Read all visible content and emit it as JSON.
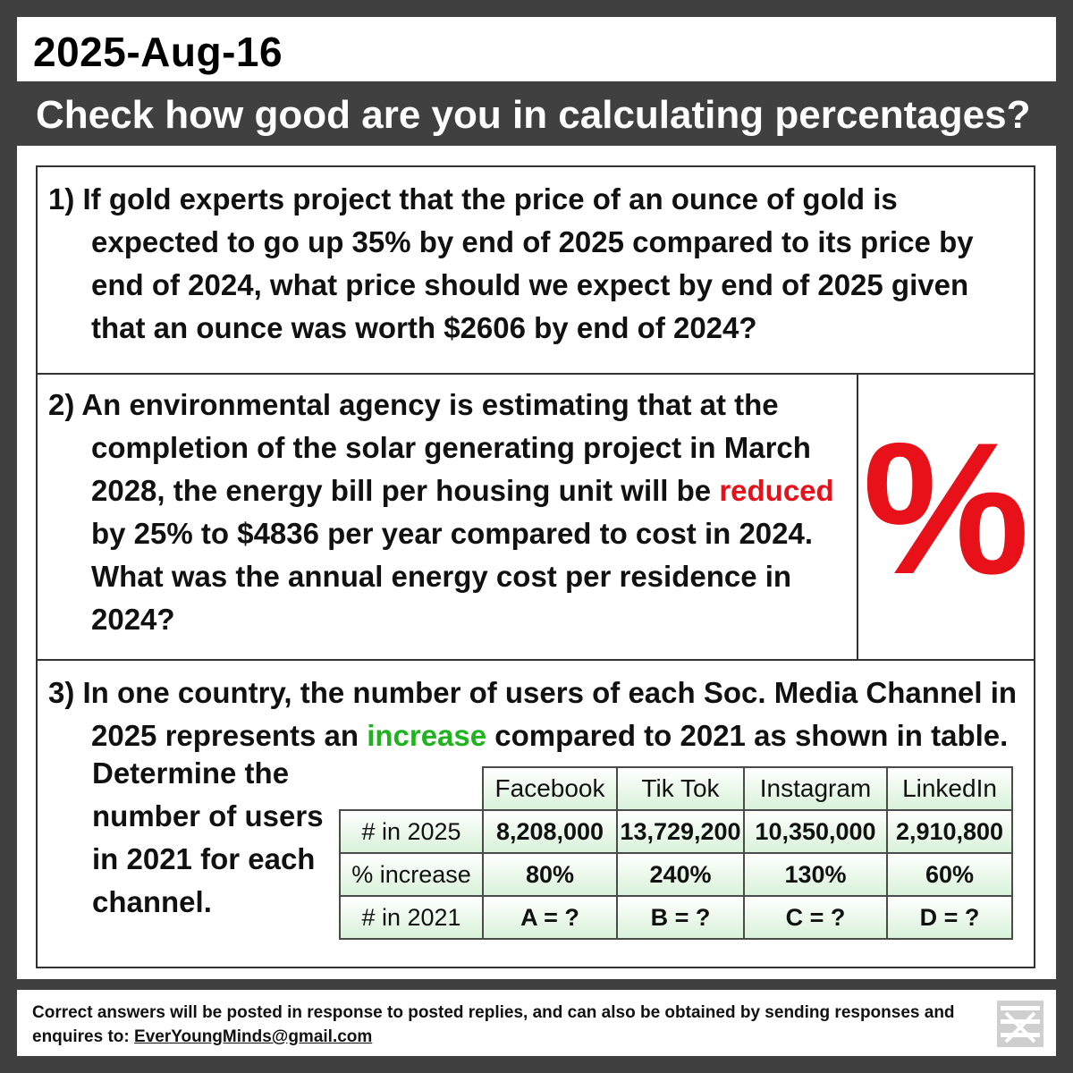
{
  "header": {
    "date": "2025-Aug-16",
    "subtitle": "Check how good are you in calculating percentages?"
  },
  "questions": {
    "q1": {
      "text": "1) If gold experts project that the price of an ounce of gold is expected to go up 35% by end of 2025 compared to its price by end of 2024, what price should we expect by end of 2025 given that an ounce was worth $2606 by end of 2024?"
    },
    "q2": {
      "text_before": "2) An environmental agency is estimating that at the completion of the solar generating project in March 2028, the energy bill per housing unit will be ",
      "highlight": "reduced",
      "text_after": " by 25% to $4836 per year compared to cost in 2024. What was the annual energy cost per residence in 2024?",
      "symbol": "%"
    },
    "q3": {
      "text_before": "3) In one country, the number of users of each Soc. Media Channel in 2025 represents an ",
      "highlight": "increase",
      "text_after": " compared to 2021 as shown in table.",
      "determine": "Determine the number of users in 2021 for each channel."
    }
  },
  "table": {
    "columns": [
      "Facebook",
      "Tik Tok",
      "Instagram",
      "LinkedIn"
    ],
    "rows": [
      {
        "label": "# in 2025",
        "values": [
          "8,208,000",
          "13,729,200",
          "10,350,000",
          "2,910,800"
        ]
      },
      {
        "label": "% increase",
        "values": [
          "80%",
          "240%",
          "130%",
          "60%"
        ]
      },
      {
        "label": "# in 2021",
        "values": [
          "A = ?",
          "B = ?",
          "C = ?",
          "D = ?"
        ]
      }
    ]
  },
  "footer": {
    "text": "Correct answers will be posted in response to posted replies, and can also be obtained by sending responses and enquires to: ",
    "email": "EverYoungMinds@gmail.com",
    "logo_icon": "ever-young-minds-logo"
  },
  "colors": {
    "background": "#404040",
    "accent_red": "#e8111a",
    "accent_green": "#1fb41f",
    "table_fill": "#d9f2d9"
  }
}
